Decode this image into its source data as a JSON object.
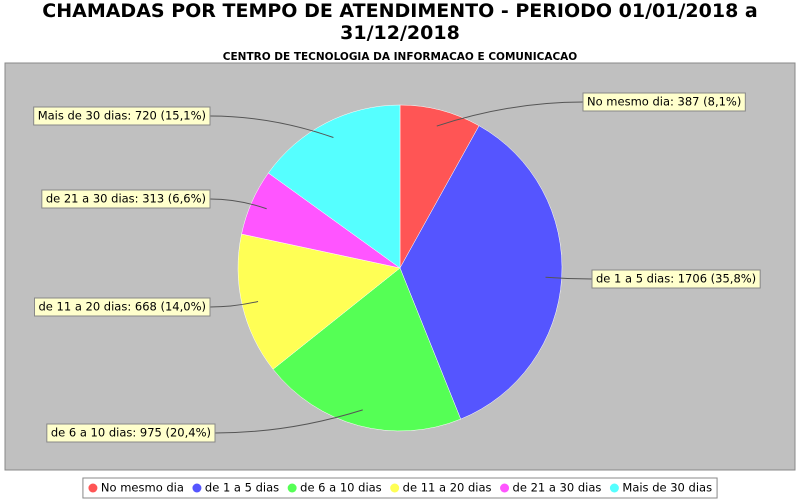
{
  "chart_data": {
    "type": "pie",
    "title": "CHAMADAS POR TEMPO DE ATENDIMENTO - PERIODO 01/01/2018 a 31/12/2018",
    "subtitle": "CENTRO DE TECNOLOGIA DA INFORMACAO E COMUNICACAO",
    "categories": [
      "No mesmo dia",
      "de 1 a 5 dias",
      "de 6 a 10 dias",
      "de 11 a 20 dias",
      "de 21 a 30 dias",
      "Mais de 30 dias"
    ],
    "values": [
      387,
      1706,
      975,
      668,
      313,
      720
    ],
    "value_labels": [
      "No mesmo dia: 387 (8,1%)",
      "de 1 a 5 dias: 1706 (35,8%)",
      "de 6 a 10 dias: 975 (20,4%)",
      "de 11 a 20 dias: 668 (14,0%)",
      "de 21 a 30 dias: 313 (6,6%)",
      "Mais de 30 dias: 720 (15,1%)"
    ],
    "colors": [
      "#ff5555",
      "#5555ff",
      "#55ff55",
      "#ffff55",
      "#ff55ff",
      "#55ffff"
    ],
    "legend": "bottom"
  }
}
